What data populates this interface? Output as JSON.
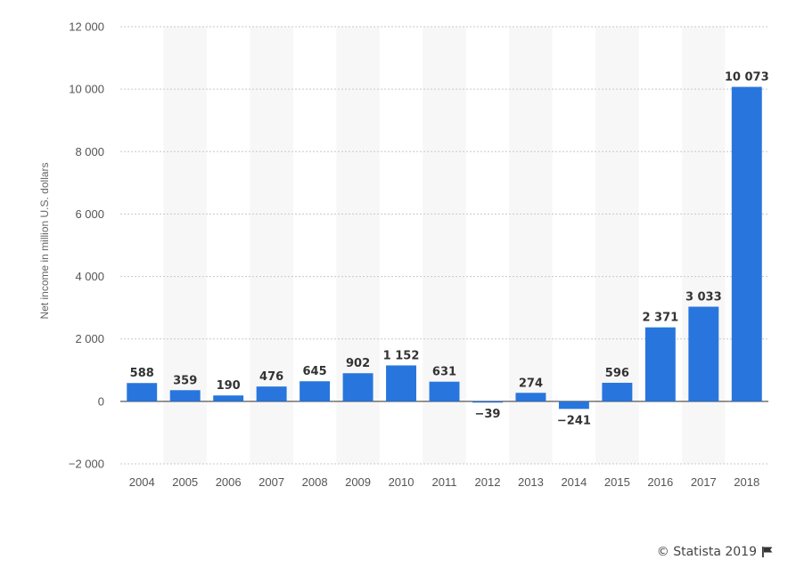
{
  "chart_data": {
    "type": "bar",
    "categories": [
      "2004",
      "2005",
      "2006",
      "2007",
      "2008",
      "2009",
      "2010",
      "2011",
      "2012",
      "2013",
      "2014",
      "2015",
      "2016",
      "2017",
      "2018"
    ],
    "values": [
      588,
      359,
      190,
      476,
      645,
      902,
      1152,
      631,
      -39,
      274,
      -241,
      596,
      2371,
      3033,
      10073
    ],
    "value_labels": [
      "588",
      "359",
      "190",
      "476",
      "645",
      "902",
      "1 152",
      "631",
      "−39",
      "274",
      "−241",
      "596",
      "2 371",
      "3 033",
      "10 073"
    ],
    "ylabel": "Net income in million U.S. dollars",
    "xlabel": "",
    "ylim": [
      -2000,
      12000
    ],
    "yticks": [
      -2000,
      0,
      2000,
      4000,
      6000,
      8000,
      10000,
      12000
    ],
    "ytick_labels": [
      "−2 000",
      "0",
      "2 000",
      "4 000",
      "6 000",
      "8 000",
      "10 000",
      "12 000"
    ],
    "grid": true,
    "grid_style": "dotted horizontal",
    "alternating_column_shading": true,
    "bar_color": "#2876dd",
    "shade_color": "#f7f7f7"
  },
  "credit": {
    "text": "© Statista 2019",
    "icon": "flag-icon"
  }
}
